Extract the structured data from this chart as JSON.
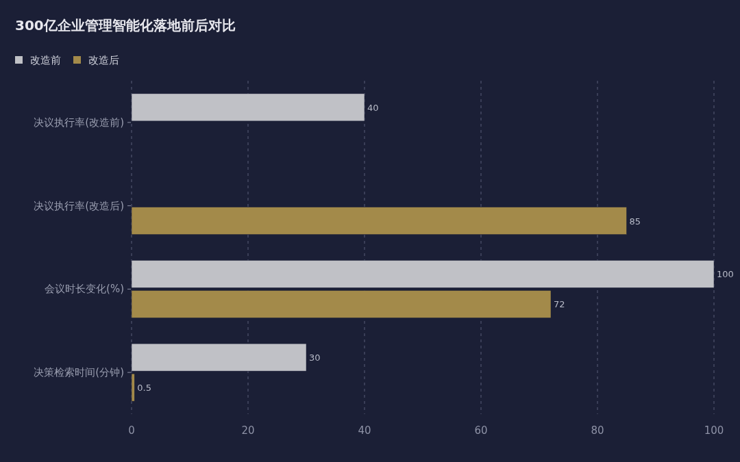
{
  "chart_data": {
    "type": "bar",
    "orientation": "horizontal",
    "title": "300亿企业管理智能化落地前后对比",
    "categories": [
      "决议执行率(改造前)",
      "决议执行率(改造后)",
      "会议时长变化(%)",
      "决策检索时间(分钟)"
    ],
    "series": [
      {
        "name": "改造前",
        "color": "#c0c1c6",
        "values": [
          40,
          null,
          100,
          30
        ]
      },
      {
        "name": "改造后",
        "color": "#a38a4a",
        "values": [
          null,
          85,
          72,
          0.5
        ]
      }
    ],
    "xlim": [
      0,
      100
    ],
    "xticks": [
      0,
      20,
      40,
      60,
      80,
      100
    ],
    "grid": "x",
    "legend": "top left",
    "data_labels": true
  }
}
